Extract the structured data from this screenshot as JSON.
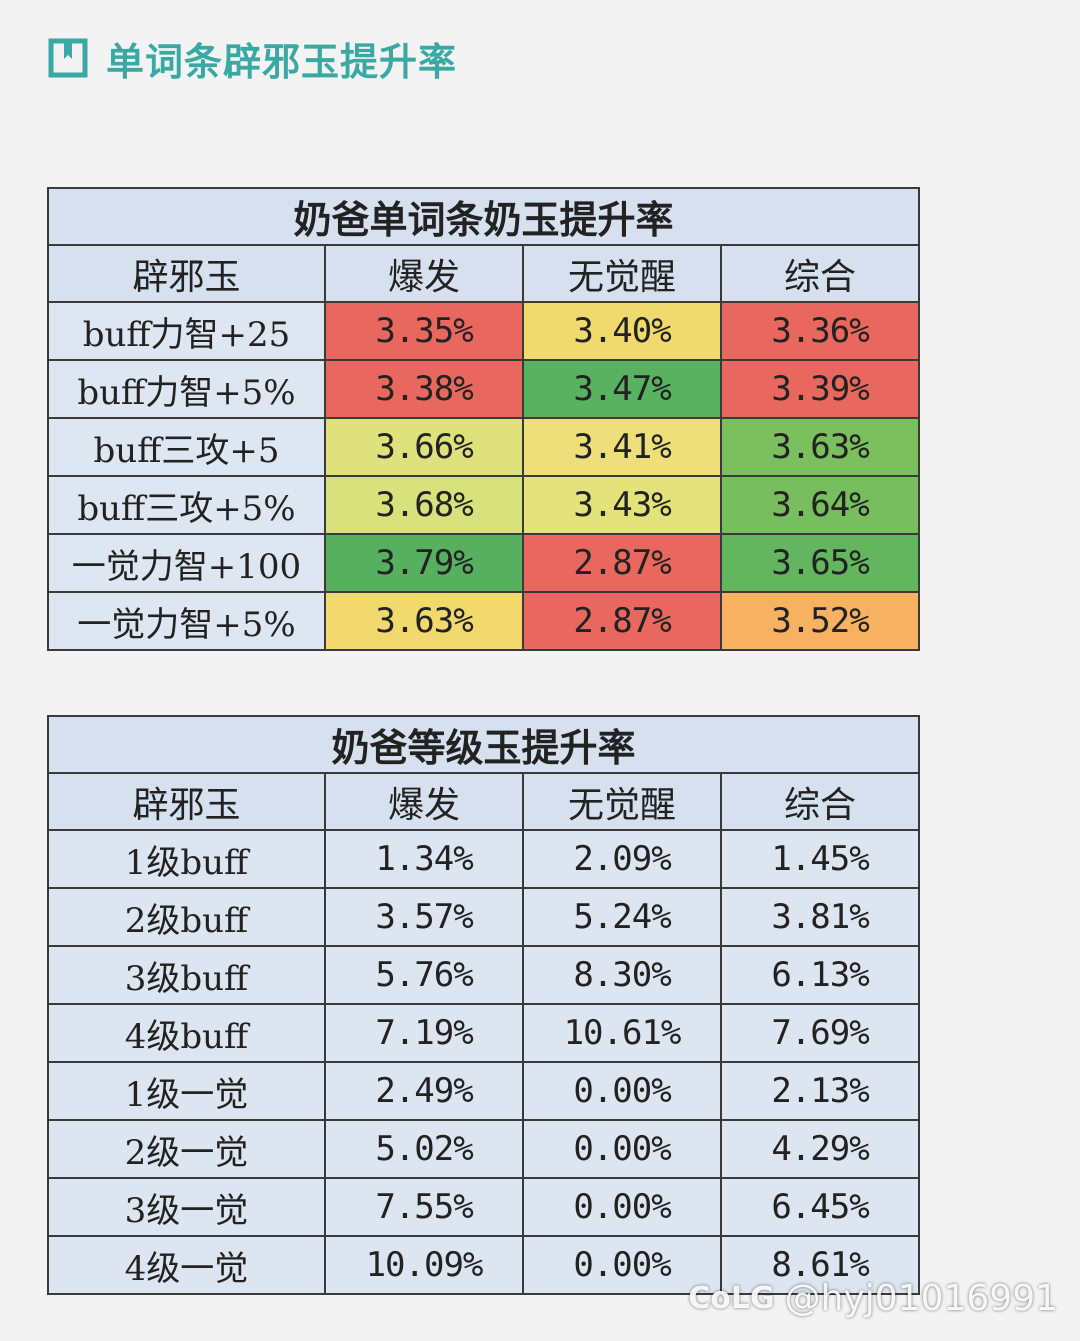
{
  "header": {
    "title": "单词条辟邪玉提升率"
  },
  "table1": {
    "title": "奶爸单词条奶玉提升率",
    "columns": [
      "辟邪玉",
      "爆发",
      "无觉醒",
      "综合"
    ],
    "rows": [
      {
        "label": "buff力智+25",
        "values": [
          "3.35%",
          "3.40%",
          "3.36%"
        ],
        "colors": [
          "#e8675f",
          "#f0da6e",
          "#e8675f"
        ]
      },
      {
        "label": "buff力智+5%",
        "values": [
          "3.38%",
          "3.47%",
          "3.39%"
        ],
        "colors": [
          "#e8675f",
          "#59b25f",
          "#e8675f"
        ]
      },
      {
        "label": "buff三攻+5",
        "values": [
          "3.66%",
          "3.41%",
          "3.63%"
        ],
        "colors": [
          "#dfe27c",
          "#eedf7a",
          "#7cbf5e"
        ]
      },
      {
        "label": "buff三攻+5%",
        "values": [
          "3.68%",
          "3.43%",
          "3.64%"
        ],
        "colors": [
          "#d8e27c",
          "#e4e27a",
          "#78bd5e"
        ]
      },
      {
        "label": "一觉力智+100",
        "values": [
          "3.79%",
          "2.87%",
          "3.65%"
        ],
        "colors": [
          "#56b05f",
          "#e8675f",
          "#63b65f"
        ]
      },
      {
        "label": "一觉力智+5%",
        "values": [
          "3.63%",
          "2.87%",
          "3.52%"
        ],
        "colors": [
          "#f2d96e",
          "#e8675f",
          "#f6b260"
        ]
      }
    ]
  },
  "table2": {
    "title": "奶爸等级玉提升率",
    "columns": [
      "辟邪玉",
      "爆发",
      "无觉醒",
      "综合"
    ],
    "rows": [
      {
        "label": "1级buff",
        "values": [
          "1.34%",
          "2.09%",
          "1.45%"
        ]
      },
      {
        "label": "2级buff",
        "values": [
          "3.57%",
          "5.24%",
          "3.81%"
        ]
      },
      {
        "label": "3级buff",
        "values": [
          "5.76%",
          "8.30%",
          "6.13%"
        ]
      },
      {
        "label": "4级buff",
        "values": [
          "7.19%",
          "10.61%",
          "7.69%"
        ]
      },
      {
        "label": "1级一觉",
        "values": [
          "2.49%",
          "0.00%",
          "2.13%"
        ]
      },
      {
        "label": "2级一觉",
        "values": [
          "5.02%",
          "0.00%",
          "4.29%"
        ]
      },
      {
        "label": "3级一觉",
        "values": [
          "7.55%",
          "0.00%",
          "6.45%"
        ]
      },
      {
        "label": "4级一觉",
        "values": [
          "10.09%",
          "0.00%",
          "8.61%"
        ]
      }
    ]
  },
  "watermark": {
    "logo": "CoLG",
    "handle": "@hyj01016991"
  },
  "colors": {
    "accent": "#3aa9a4",
    "header_bg": "#d6e0ee",
    "body_bg": "#dde5f0"
  }
}
